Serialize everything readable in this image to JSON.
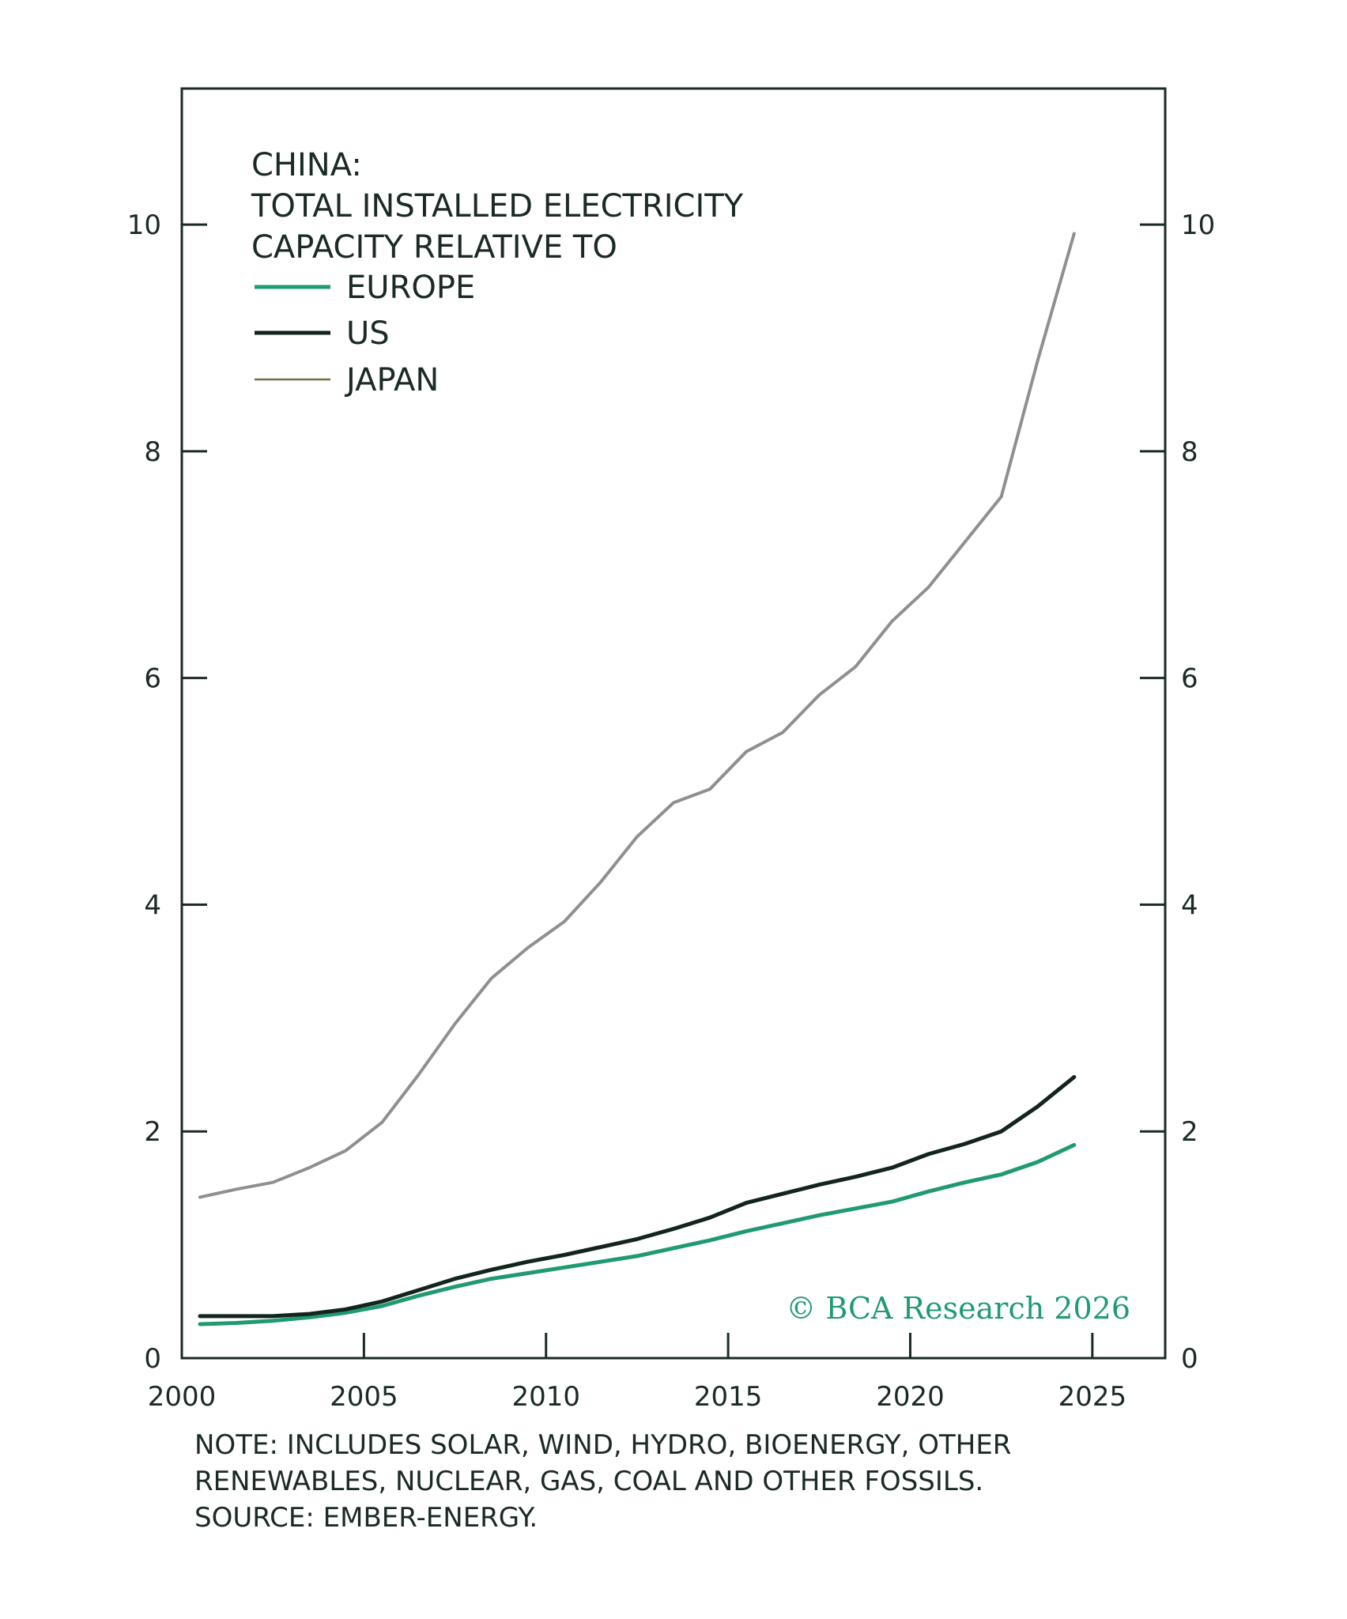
{
  "chart_data": {
    "type": "line",
    "title": [
      "CHINA:",
      "TOTAL INSTALLED ELECTRICITY",
      "CAPACITY RELATIVE TO"
    ],
    "xlim": [
      2000,
      2027
    ],
    "ylim": [
      0,
      11.2
    ],
    "x_ticks": [
      2000,
      2005,
      2010,
      2015,
      2020,
      2025
    ],
    "y_ticks": [
      0,
      2,
      4,
      6,
      8,
      10
    ],
    "left_axis_labels": [
      "0",
      "2",
      "4",
      "6",
      "8",
      "10"
    ],
    "right_axis_labels": [
      "0",
      "2",
      "4",
      "6",
      "8",
      "10"
    ],
    "x_tick_labels": [
      "2000",
      "2005",
      "2010",
      "2015",
      "2020",
      "2025"
    ],
    "legend_placement": "top-left",
    "grid": false,
    "x": [
      2000.5,
      2001.5,
      2002.5,
      2003.5,
      2004.5,
      2005.5,
      2006.5,
      2007.5,
      2008.5,
      2009.5,
      2010.5,
      2011.5,
      2012.5,
      2013.5,
      2014.5,
      2015.5,
      2016.5,
      2017.5,
      2018.5,
      2019.5,
      2020.5,
      2021.5,
      2022.5,
      2023.5,
      2024.5
    ],
    "series": [
      {
        "name": "EUROPE",
        "color": "#1f9a74",
        "values": [
          0.3,
          0.31,
          0.33,
          0.36,
          0.4,
          0.46,
          0.55,
          0.63,
          0.7,
          0.75,
          0.8,
          0.85,
          0.9,
          0.97,
          1.04,
          1.12,
          1.19,
          1.26,
          1.32,
          1.38,
          1.47,
          1.55,
          1.62,
          1.73,
          1.88
        ]
      },
      {
        "name": "US",
        "color": "#13241f",
        "values": [
          0.37,
          0.37,
          0.37,
          0.39,
          0.43,
          0.5,
          0.6,
          0.7,
          0.78,
          0.85,
          0.91,
          0.98,
          1.05,
          1.14,
          1.24,
          1.37,
          1.45,
          1.53,
          1.6,
          1.68,
          1.8,
          1.89,
          2.0,
          2.22,
          2.48
        ]
      },
      {
        "name": "JAPAN",
        "color": "#8f8f8f",
        "legend_color": "#7a6a45",
        "values": [
          1.42,
          1.49,
          1.55,
          1.68,
          1.83,
          2.08,
          2.5,
          2.95,
          3.35,
          3.62,
          3.85,
          4.2,
          4.6,
          4.9,
          5.02,
          5.35,
          5.52,
          5.85,
          6.1,
          6.5,
          6.8,
          7.2,
          7.6,
          8.8,
          9.92
        ]
      }
    ]
  },
  "watermark": "© BCA Research 2026",
  "note": {
    "lines": [
      "NOTE: INCLUDES SOLAR, WIND, HYDRO, BIOENERGY, OTHER",
      "RENEWABLES, NUCLEAR, GAS, COAL AND OTHER FOSSILS.",
      "SOURCE: EMBER-ENERGY."
    ]
  }
}
